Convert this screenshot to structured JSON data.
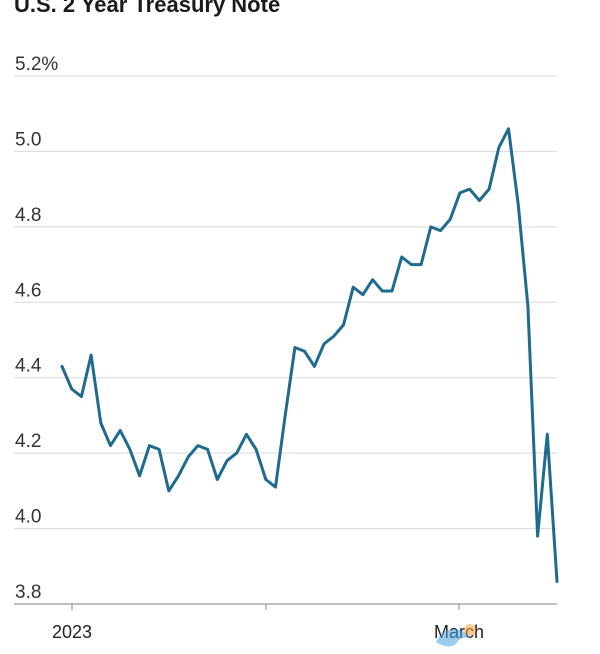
{
  "chart_data": {
    "type": "line",
    "title": "U.S. 2 Year Treasury Note",
    "xlabel": "",
    "ylabel": "",
    "ylim": [
      3.8,
      5.2
    ],
    "y_ticks": [
      {
        "value": 5.2,
        "label": "5.2%"
      },
      {
        "value": 5.0,
        "label": "5.0"
      },
      {
        "value": 4.8,
        "label": "4.8"
      },
      {
        "value": 4.6,
        "label": "4.6"
      },
      {
        "value": 4.4,
        "label": "4.4"
      },
      {
        "value": 4.2,
        "label": "4.2"
      },
      {
        "value": 4.0,
        "label": "4.0"
      },
      {
        "value": 3.8,
        "label": "3.8"
      }
    ],
    "x_tick_labels": [
      "2023",
      "March"
    ],
    "grid": true,
    "series": [
      {
        "color": "#1f6b8e",
        "values": [
          4.43,
          4.37,
          4.35,
          4.46,
          4.28,
          4.22,
          4.26,
          4.21,
          4.14,
          4.22,
          4.21,
          4.1,
          4.14,
          4.19,
          4.22,
          4.21,
          4.13,
          4.18,
          4.2,
          4.25,
          4.21,
          4.13,
          4.11,
          4.3,
          4.48,
          4.47,
          4.43,
          4.49,
          4.51,
          4.54,
          4.64,
          4.62,
          4.66,
          4.63,
          4.63,
          4.72,
          4.7,
          4.7,
          4.8,
          4.79,
          4.82,
          4.89,
          4.9,
          4.87,
          4.9,
          5.01,
          5.06,
          4.86,
          4.59,
          3.98,
          4.25,
          3.86
        ]
      }
    ]
  }
}
